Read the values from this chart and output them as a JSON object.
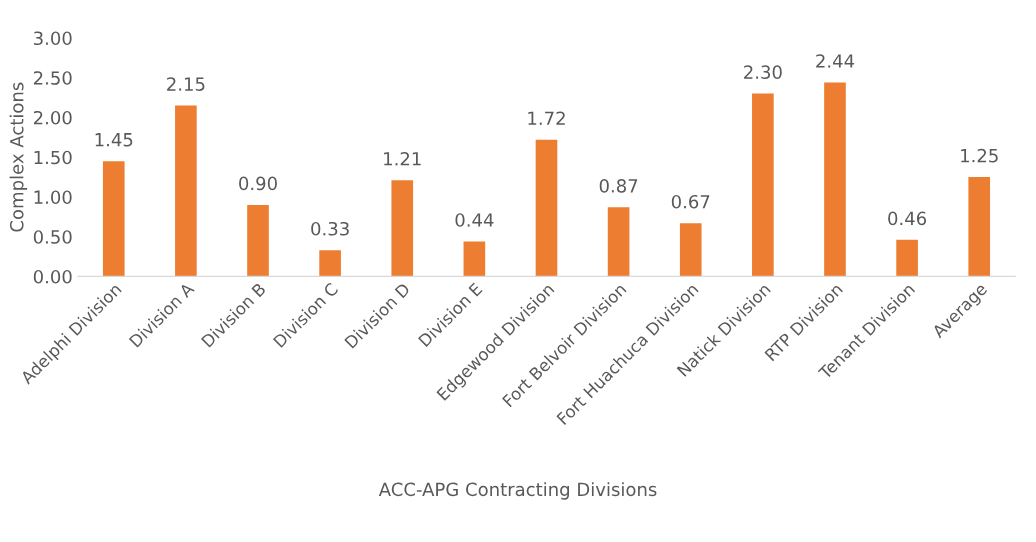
{
  "chart_data": {
    "type": "bar",
    "xlabel": "ACC-APG Contracting Divisions",
    "ylabel": "Complex Actions",
    "categories": [
      "Adelphi Division",
      "Division A",
      "Division B",
      "Division C",
      "Division D",
      "Division E",
      "Edgewood Division",
      "Fort Belvoir Division",
      "Fort Huachuca Division",
      "Natick Division",
      "RTP Division",
      "Tenant Division",
      "Average"
    ],
    "values": [
      1.45,
      2.15,
      0.9,
      0.33,
      1.21,
      0.44,
      1.72,
      0.87,
      0.67,
      2.3,
      2.44,
      0.46,
      1.25
    ],
    "value_labels": [
      "1.45",
      "2.15",
      "0.90",
      "0.33",
      "1.21",
      "0.44",
      "1.72",
      "0.87",
      "0.67",
      "2.30",
      "2.44",
      "0.46",
      "1.25"
    ],
    "color": "#ed7d31",
    "ylim": [
      0,
      3
    ],
    "yticks": [
      {
        "value": 0,
        "label": "0.00"
      },
      {
        "value": 0.5,
        "label": "0.50"
      },
      {
        "value": 1,
        "label": "1.00"
      },
      {
        "value": 1.5,
        "label": "1.50"
      },
      {
        "value": 2,
        "label": "2.00"
      },
      {
        "value": 2.5,
        "label": "2.50"
      },
      {
        "value": 3,
        "label": "3.00"
      }
    ],
    "grid": false,
    "legend": false
  }
}
